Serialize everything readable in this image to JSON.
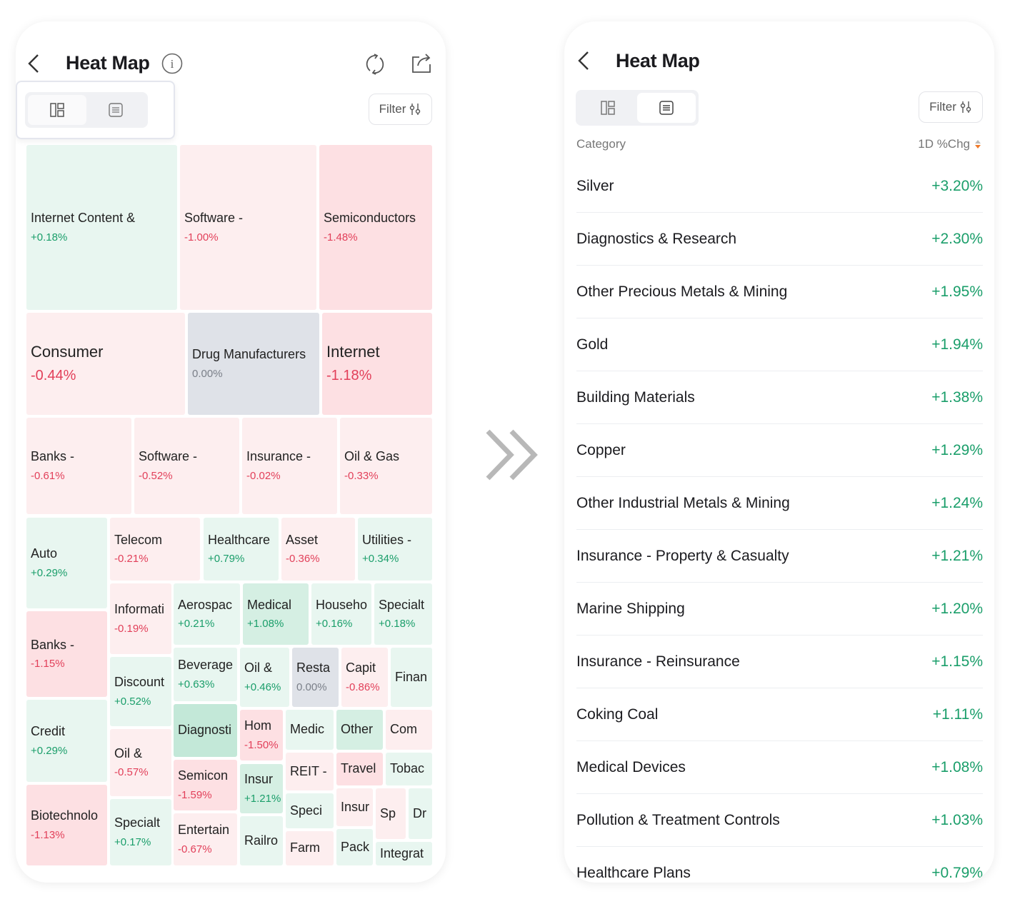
{
  "left_screen": {
    "title": "Heat Map",
    "filter_label": "Filter",
    "view_toggle": {
      "selected": "treemap"
    },
    "tiles": [
      {
        "label": "Internet Content &",
        "value": "+0.18%",
        "color": "#e8f6f0"
      },
      {
        "label": "Software -",
        "value": "-1.00%",
        "color": "#fdeeef"
      },
      {
        "label": "Semiconductors",
        "value": "-1.48%",
        "color": "#fde0e3"
      },
      {
        "label": "Consumer",
        "value": "-0.44%",
        "color": "#fdeeef"
      },
      {
        "label": "Drug Manufacturers",
        "value": "0.00%",
        "color": "#dfe2e8"
      },
      {
        "label": "Internet",
        "value": "-1.18%",
        "color": "#fde0e3"
      },
      {
        "label": "Banks -",
        "value": "-0.61%",
        "color": "#fdeeef"
      },
      {
        "label": "Software -",
        "value": "-0.52%",
        "color": "#fdeeef"
      },
      {
        "label": "Insurance -",
        "value": "-0.02%",
        "color": "#fdeeef"
      },
      {
        "label": "Oil & Gas",
        "value": "-0.33%",
        "color": "#fdeeef"
      },
      {
        "label": "Auto",
        "value": "+0.29%",
        "color": "#e8f6f0"
      },
      {
        "label": "Banks -",
        "value": "-1.15%",
        "color": "#fde0e3"
      },
      {
        "label": "Credit",
        "value": "+0.29%",
        "color": "#e8f6f0"
      },
      {
        "label": "Biotechnolo",
        "value": "-1.13%",
        "color": "#fde0e3"
      },
      {
        "label": "Telecom",
        "value": "-0.21%",
        "color": "#fdeeef"
      },
      {
        "label": "Healthcare",
        "value": "+0.79%",
        "color": "#e8f6f0"
      },
      {
        "label": "Asset",
        "value": "-0.36%",
        "color": "#fdeeef"
      },
      {
        "label": "Utilities -",
        "value": "+0.34%",
        "color": "#e8f6f0"
      },
      {
        "label": "Informati",
        "value": "-0.19%",
        "color": "#fdeeef"
      },
      {
        "label": "Discount",
        "value": "+0.52%",
        "color": "#e8f6f0"
      },
      {
        "label": "Oil &",
        "value": "-0.57%",
        "color": "#fdeeef"
      },
      {
        "label": "Specialt",
        "value": "+0.17%",
        "color": "#e8f6f0"
      },
      {
        "label": "Aerospac",
        "value": "+0.21%",
        "color": "#e8f6f0"
      },
      {
        "label": "Medical",
        "value": "+1.08%",
        "color": "#d5efe3"
      },
      {
        "label": "Househo",
        "value": "+0.16%",
        "color": "#e8f6f0"
      },
      {
        "label": "Specialt",
        "value": "+0.18%",
        "color": "#e8f6f0"
      },
      {
        "label": "Beverage",
        "value": "+0.63%",
        "color": "#e8f6f0"
      },
      {
        "label": "Oil &",
        "value": "+0.46%",
        "color": "#e8f6f0"
      },
      {
        "label": "Resta",
        "value": "0.00%",
        "color": "#dfe2e8"
      },
      {
        "label": "Capit",
        "value": "-0.86%",
        "color": "#fdeeef"
      },
      {
        "label": "Finan",
        "value": "",
        "color": "#e8f6f0"
      },
      {
        "label": "Diagnosti",
        "value": "",
        "color": "#c3e8d8"
      },
      {
        "label": "Semicon",
        "value": "-1.59%",
        "color": "#fde0e3"
      },
      {
        "label": "Entertain",
        "value": "-0.67%",
        "color": "#fdeeef"
      },
      {
        "label": "Hom",
        "value": "-1.50%",
        "color": "#fde0e3"
      },
      {
        "label": "Insur",
        "value": "+1.21%",
        "color": "#d5efe3"
      },
      {
        "label": "Railro",
        "value": "",
        "color": "#e8f6f0"
      },
      {
        "label": "Medic",
        "value": "",
        "color": "#e8f6f0"
      },
      {
        "label": "Other",
        "value": "",
        "color": "#d5efe3"
      },
      {
        "label": "Com",
        "value": "",
        "color": "#fdeeef"
      },
      {
        "label": "REIT -",
        "value": "",
        "color": "#fdeeef"
      },
      {
        "label": "Travel",
        "value": "",
        "color": "#fde0e3"
      },
      {
        "label": "Tobac",
        "value": "",
        "color": "#e8f6f0"
      },
      {
        "label": "Speci",
        "value": "",
        "color": "#e8f6f0"
      },
      {
        "label": "Farm",
        "value": "",
        "color": "#fdeeef"
      },
      {
        "label": "Insur",
        "value": "",
        "color": "#fdeeef"
      },
      {
        "label": "Pack",
        "value": "",
        "color": "#e8f6f0"
      },
      {
        "label": "Sp",
        "value": "",
        "color": "#fdeeef"
      },
      {
        "label": "Dr",
        "value": "",
        "color": "#e8f6f0"
      },
      {
        "label": "Integrat",
        "value": "",
        "color": "#e8f6f0"
      }
    ]
  },
  "right_screen": {
    "title": "Heat Map",
    "filter_label": "Filter",
    "view_toggle": {
      "selected": "list"
    },
    "header": {
      "category": "Category",
      "change": "1D %Chg"
    },
    "rows": [
      {
        "name": "Silver",
        "change": "+3.20%"
      },
      {
        "name": "Diagnostics & Research",
        "change": "+2.30%"
      },
      {
        "name": "Other Precious Metals & Mining",
        "change": "+1.95%"
      },
      {
        "name": "Gold",
        "change": "+1.94%"
      },
      {
        "name": "Building Materials",
        "change": "+1.38%"
      },
      {
        "name": "Copper",
        "change": "+1.29%"
      },
      {
        "name": "Other Industrial Metals & Mining",
        "change": "+1.24%"
      },
      {
        "name": "Insurance - Property & Casualty",
        "change": "+1.21%"
      },
      {
        "name": "Marine Shipping",
        "change": "+1.20%"
      },
      {
        "name": "Insurance - Reinsurance",
        "change": "+1.15%"
      },
      {
        "name": "Coking Coal",
        "change": "+1.11%"
      },
      {
        "name": "Medical Devices",
        "change": "+1.08%"
      },
      {
        "name": "Pollution & Treatment Controls",
        "change": "+1.03%"
      },
      {
        "name": "Healthcare Plans",
        "change": "+0.79%"
      }
    ]
  },
  "colors": {
    "positive": "#1a9e6a",
    "negative": "#e2405a",
    "neutral": "#7a7f88"
  }
}
